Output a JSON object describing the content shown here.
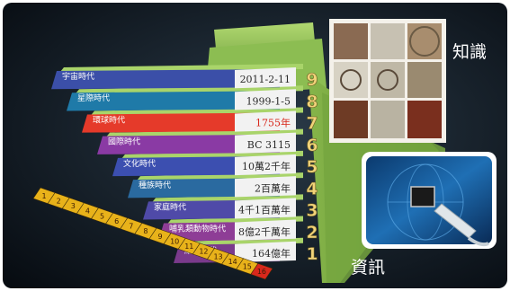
{
  "levels": [
    {
      "number": "1",
      "era": "細胞時代",
      "value": "164億年",
      "color": "#7a3a8c"
    },
    {
      "number": "2",
      "era": "哺乳類動物時代",
      "value": "8億2千萬年",
      "color": "#8e3d96"
    },
    {
      "number": "3",
      "era": "家庭時代",
      "value": "4千1百萬年",
      "color": "#4f4aa8"
    },
    {
      "number": "4",
      "era": "種族時代",
      "value": "2百萬年",
      "color": "#2a6aa0"
    },
    {
      "number": "5",
      "era": "文化時代",
      "value": "10萬2千年",
      "color": "#3c4fb0"
    },
    {
      "number": "6",
      "era": "國際時代",
      "value": "BC 3115",
      "color": "#8a3aa4"
    },
    {
      "number": "7",
      "era": "環球時代",
      "value": "1755年",
      "color": "#e53a2a"
    },
    {
      "number": "8",
      "era": "星際時代",
      "value": "1999-1-5",
      "color": "#1f7aa8"
    },
    {
      "number": "9",
      "era": "宇宙時代",
      "value": "2011-2-11",
      "color": "#3b4fa8"
    }
  ],
  "calendar_strip": [
    "1",
    "2",
    "3",
    "4",
    "5",
    "6",
    "7",
    "8",
    "9",
    "10",
    "11",
    "12",
    "13",
    "14",
    "15",
    "16"
  ],
  "panels": {
    "knowledge_label": "知識",
    "information_label": "資訊"
  },
  "colors": {
    "background": "#0d1822",
    "pyramid_green": "#86b54a",
    "number_gold": "#f1d37a"
  }
}
